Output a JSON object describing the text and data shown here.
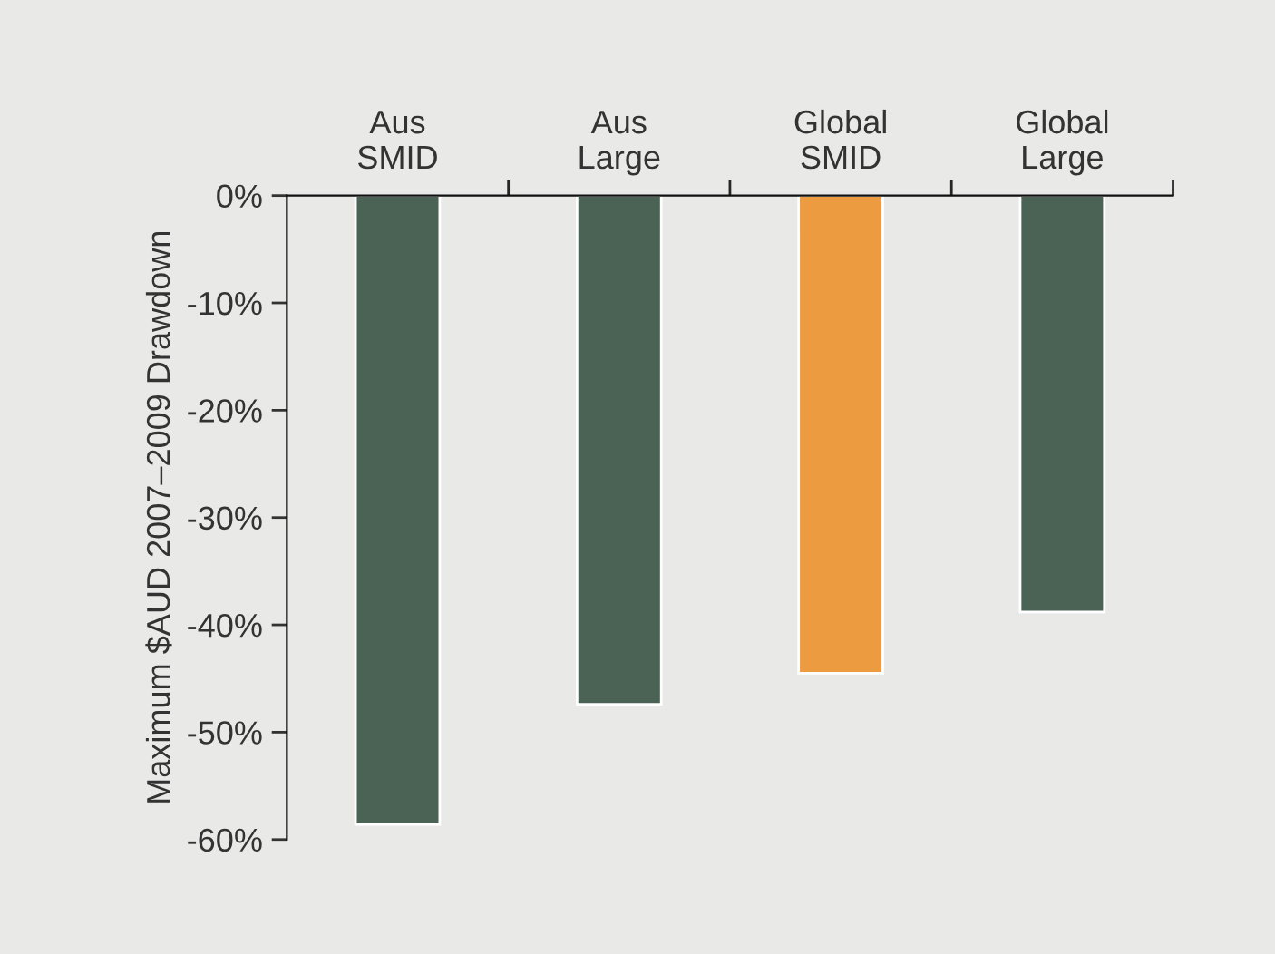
{
  "chart_data": {
    "type": "bar",
    "ylabel": "Maximum $AUD 2007–2009 Drawdown",
    "categories": [
      "Aus\nSMID",
      "Aus\nLarge",
      "Global\nSMID",
      "Global\nLarge"
    ],
    "values": [
      -58.6,
      -47.4,
      -44.5,
      -38.8
    ],
    "colors": [
      "#4b6354",
      "#4b6354",
      "#ec9b41",
      "#4b6354"
    ],
    "ylim": [
      -60,
      0
    ],
    "yticks": [
      {
        "value": 0,
        "label": "0%"
      },
      {
        "value": -10,
        "label": "-10%"
      },
      {
        "value": -20,
        "label": "-20%"
      },
      {
        "value": -30,
        "label": "-30%"
      },
      {
        "value": -40,
        "label": "-40%"
      },
      {
        "value": -50,
        "label": "-50%"
      },
      {
        "value": -60,
        "label": "-60%"
      }
    ],
    "grid": false,
    "legend": false
  }
}
